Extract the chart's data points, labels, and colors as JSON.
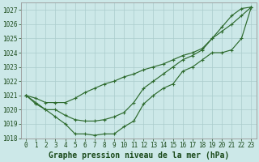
{
  "title": "Graphe pression niveau de la mer (hPa)",
  "xlabel_hours": [
    0,
    1,
    2,
    3,
    4,
    5,
    6,
    7,
    8,
    9,
    10,
    11,
    12,
    13,
    14,
    15,
    16,
    17,
    18,
    19,
    20,
    21,
    22,
    23
  ],
  "line1": [
    1021.0,
    1020.8,
    1020.5,
    1020.5,
    1020.5,
    1020.8,
    1021.2,
    1021.5,
    1021.8,
    1022.0,
    1022.3,
    1022.5,
    1022.8,
    1023.0,
    1023.2,
    1023.5,
    1023.8,
    1024.0,
    1024.3,
    1025.0,
    1025.5,
    1026.0,
    1026.6,
    1027.2
  ],
  "line2": [
    1021.0,
    1020.5,
    1020.0,
    1020.0,
    1019.6,
    1019.3,
    1019.2,
    1019.2,
    1019.3,
    1019.5,
    1019.8,
    1020.5,
    1021.5,
    1022.0,
    1022.5,
    1023.0,
    1023.5,
    1023.8,
    1024.2,
    1025.0,
    1025.8,
    1026.6,
    1027.1,
    1027.2
  ],
  "line3": [
    1021.0,
    1020.4,
    1020.0,
    1019.5,
    1019.0,
    1018.3,
    1018.3,
    1018.2,
    1018.3,
    1018.3,
    1018.8,
    1019.2,
    1020.4,
    1021.0,
    1021.5,
    1021.8,
    1022.7,
    1023.0,
    1023.5,
    1024.0,
    1024.0,
    1024.2,
    1025.0,
    1027.2
  ],
  "bg_color": "#cce8e8",
  "grid_color": "#aacccc",
  "line_color": "#2d6a2d",
  "marker_color": "#2d6a2d",
  "axis_label_color": "#1a4a1a",
  "ylim": [
    1018,
    1027.5
  ],
  "yticks": [
    1018,
    1019,
    1020,
    1021,
    1022,
    1023,
    1024,
    1025,
    1026,
    1027
  ],
  "title_fontsize": 7.0,
  "tick_fontsize": 5.5
}
